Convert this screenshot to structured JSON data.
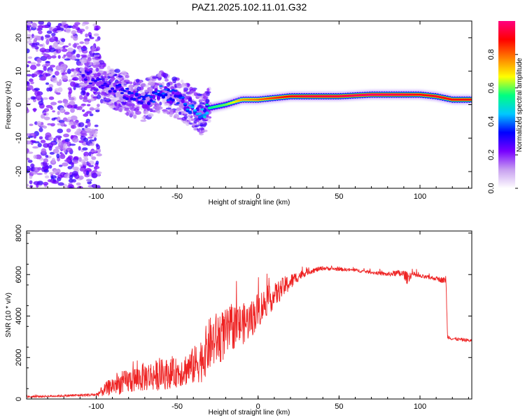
{
  "figure_title": "PAZ1.2025.102.11.01.G32",
  "chart_data": [
    {
      "type": "heatmap",
      "xlabel": "Height of straight line (km)",
      "ylabel": "Frequency (Hz)",
      "xlim": [
        -143,
        132
      ],
      "ylim": [
        -25,
        25
      ],
      "xticks": [
        -100,
        -50,
        0,
        50,
        100
      ],
      "yticks": [
        -20,
        -10,
        0,
        10,
        20
      ],
      "colorbar": {
        "label": "Normalized spectral amplitude",
        "range": [
          0,
          1
        ],
        "ticks": [
          "0.0",
          "0.2",
          "0.4",
          "0.6",
          "0.8"
        ],
        "stops": [
          "#ffffff",
          "#c8a0f0",
          "#7800ff",
          "#0000ff",
          "#00c8ff",
          "#00ff80",
          "#ffff00",
          "#ff8000",
          "#ff0000",
          "#ff0080"
        ]
      },
      "ridge": {
        "x": [
          -108,
          -100,
          -90,
          -80,
          -70,
          -60,
          -50,
          -40,
          -35,
          -30,
          -20,
          -10,
          0,
          10,
          20,
          30,
          50,
          70,
          90,
          100,
          110,
          120,
          132
        ],
        "freq": [
          8,
          8,
          5,
          3,
          1,
          4,
          2,
          -1,
          -3,
          -1,
          0,
          1.5,
          1.5,
          2,
          2.5,
          2.5,
          2.5,
          3,
          3,
          3,
          2.5,
          1.5,
          1.5
        ],
        "amplitude": [
          0.3,
          0.3,
          0.3,
          0.35,
          0.35,
          0.4,
          0.35,
          0.45,
          0.45,
          0.55,
          0.6,
          0.75,
          0.8,
          0.85,
          0.9,
          0.95,
          0.95,
          0.98,
          0.95,
          0.9,
          0.92,
          0.9,
          0.9
        ]
      }
    },
    {
      "type": "line",
      "xlabel": "Height of straight line (km)",
      "ylabel": "SNR (10 * v/v)",
      "xlim": [
        -143,
        132
      ],
      "ylim": [
        0,
        8100
      ],
      "xticks": [
        -100,
        -50,
        0,
        50,
        100
      ],
      "yticks": [
        0,
        2000,
        4000,
        6000,
        8000
      ],
      "color": "#ee2222",
      "series": [
        {
          "x": [
            -143,
            -120,
            -100,
            -95,
            -90,
            -80,
            -70,
            -60,
            -50,
            -40,
            -35,
            -30,
            -25,
            -20,
            -15,
            -10,
            -5,
            0,
            5,
            10,
            15,
            20,
            25,
            30,
            35,
            40,
            50,
            60,
            70,
            80,
            85,
            90,
            92,
            95,
            100,
            110,
            115,
            116,
            117,
            120,
            132
          ],
          "y": [
            100,
            150,
            200,
            400,
            600,
            800,
            1000,
            1100,
            1200,
            1500,
            1800,
            2500,
            2800,
            3000,
            3400,
            3500,
            3700,
            4200,
            4600,
            4900,
            5300,
            5600,
            5900,
            6100,
            6200,
            6300,
            6250,
            6200,
            6100,
            6000,
            6050,
            6000,
            5800,
            6000,
            5900,
            5800,
            5700,
            5800,
            3000,
            2900,
            2800
          ],
          "noise": [
            50,
            60,
            80,
            300,
            450,
            600,
            700,
            750,
            700,
            900,
            1100,
            1300,
            1300,
            1200,
            1100,
            1000,
            900,
            900,
            700,
            600,
            500,
            400,
            250,
            150,
            120,
            100,
            80,
            80,
            80,
            100,
            150,
            200,
            300,
            150,
            100,
            100,
            150,
            200,
            100,
            80,
            80
          ]
        }
      ]
    }
  ]
}
